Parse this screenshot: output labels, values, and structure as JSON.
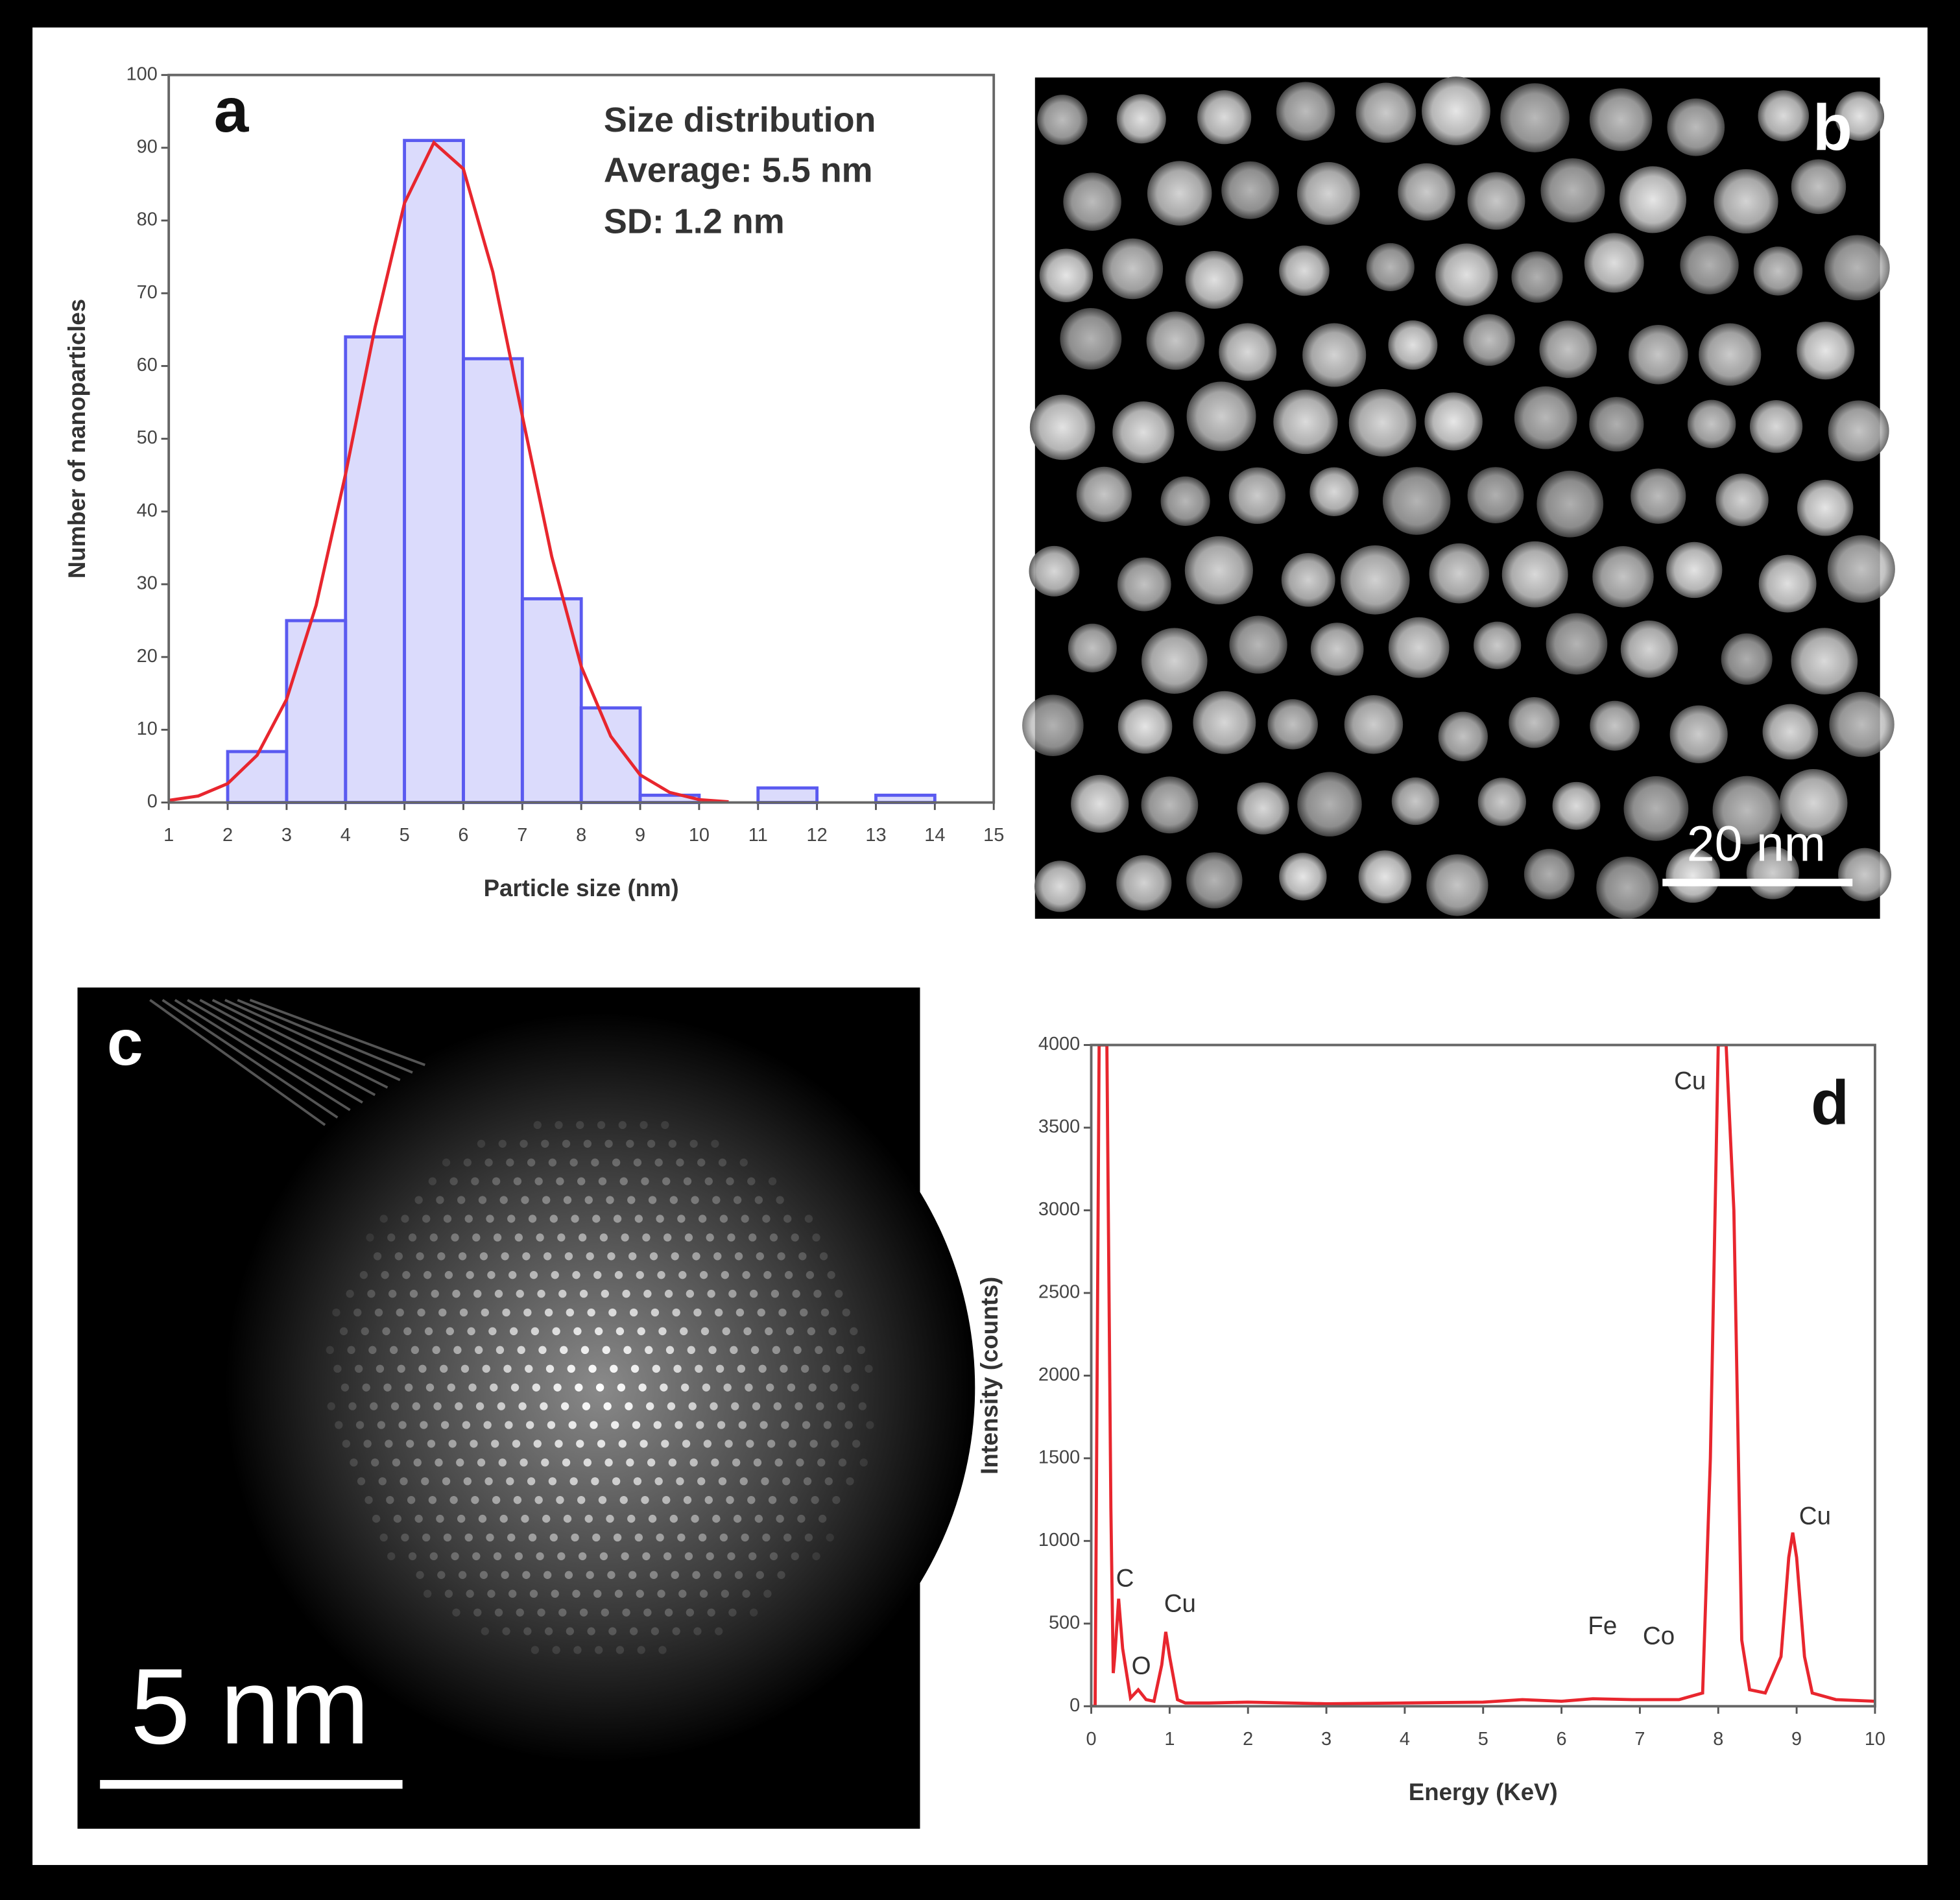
{
  "chart_data": [
    {
      "type": "histogram",
      "panel": "a",
      "annotations": [
        "Size distribution",
        "Average: 5.5 nm",
        "SD: 1.2 nm"
      ],
      "x_label": "Particle size (nm)",
      "y_label": "Number of nanoparticles",
      "bins": [
        2,
        3,
        4,
        5,
        6,
        7,
        8,
        9,
        10,
        11,
        12,
        13,
        14
      ],
      "values": [
        7,
        25,
        64,
        91,
        61,
        28,
        13,
        1,
        0,
        2,
        0,
        1
      ],
      "color": "#5a5af0",
      "fit": {
        "x": [
          1,
          1.5,
          2,
          2.5,
          3,
          3.5,
          4,
          4.5,
          5,
          5.5,
          6,
          6.5,
          7,
          7.5,
          8,
          8.5,
          9,
          9.5,
          10,
          10.5
        ],
        "values": [
          0.3,
          0.9,
          2.6,
          6.5,
          14.2,
          27.1,
          45.1,
          65.3,
          82.4,
          90.7,
          87.1,
          72.9,
          53.1,
          33.8,
          18.7,
          9.1,
          3.8,
          1.4,
          0.4,
          0.1
        ],
        "color": "#e8262e"
      },
      "xlim": [
        1,
        15
      ],
      "ylim": [
        0,
        100
      ],
      "xticks": [
        1,
        2,
        3,
        4,
        5,
        6,
        7,
        8,
        9,
        10,
        11,
        12,
        13,
        14,
        15
      ],
      "yticks": [
        0,
        10,
        20,
        30,
        40,
        50,
        60,
        70,
        80,
        90,
        100
      ]
    },
    {
      "type": "line",
      "panel": "d",
      "annotations": [
        "C",
        "O",
        "Cu",
        "Fe",
        "Co",
        "Cu",
        "Cu"
      ],
      "x_label": "Energy (KeV)",
      "y_label": "Intensity (counts)",
      "x": [
        0,
        0.05,
        0.1,
        0.15,
        0.2,
        0.25,
        0.28,
        0.3,
        0.35,
        0.4,
        0.5,
        0.6,
        0.7,
        0.8,
        0.9,
        0.95,
        1.0,
        1.1,
        1.2,
        1.5,
        2,
        3,
        4,
        5,
        5.5,
        6,
        6.4,
        6.9,
        7.5,
        7.8,
        7.9,
        8.0,
        8.1,
        8.2,
        8.3,
        8.4,
        8.6,
        8.8,
        8.9,
        8.95,
        9.0,
        9.1,
        9.2,
        9.5,
        10
      ],
      "values": [
        0,
        0,
        4000,
        4000,
        4000,
        1200,
        200,
        300,
        650,
        350,
        50,
        100,
        40,
        30,
        250,
        450,
        300,
        40,
        20,
        20,
        25,
        15,
        20,
        25,
        40,
        30,
        45,
        40,
        40,
        80,
        1500,
        4000,
        4000,
        3000,
        400,
        100,
        80,
        300,
        900,
        1050,
        900,
        300,
        80,
        40,
        30
      ],
      "color": "#e8262e",
      "xlim": [
        0,
        10
      ],
      "ylim": [
        0,
        4000
      ],
      "xticks": [
        0,
        1,
        2,
        3,
        4,
        5,
        6,
        7,
        8,
        9,
        10
      ],
      "yticks": [
        0,
        500,
        1000,
        1500,
        2000,
        2500,
        3000,
        3500,
        4000
      ]
    }
  ],
  "images": [
    {
      "panel": "b",
      "scale_bar": "20 nm"
    },
    {
      "panel": "c",
      "scale_bar": "5 nm"
    }
  ]
}
